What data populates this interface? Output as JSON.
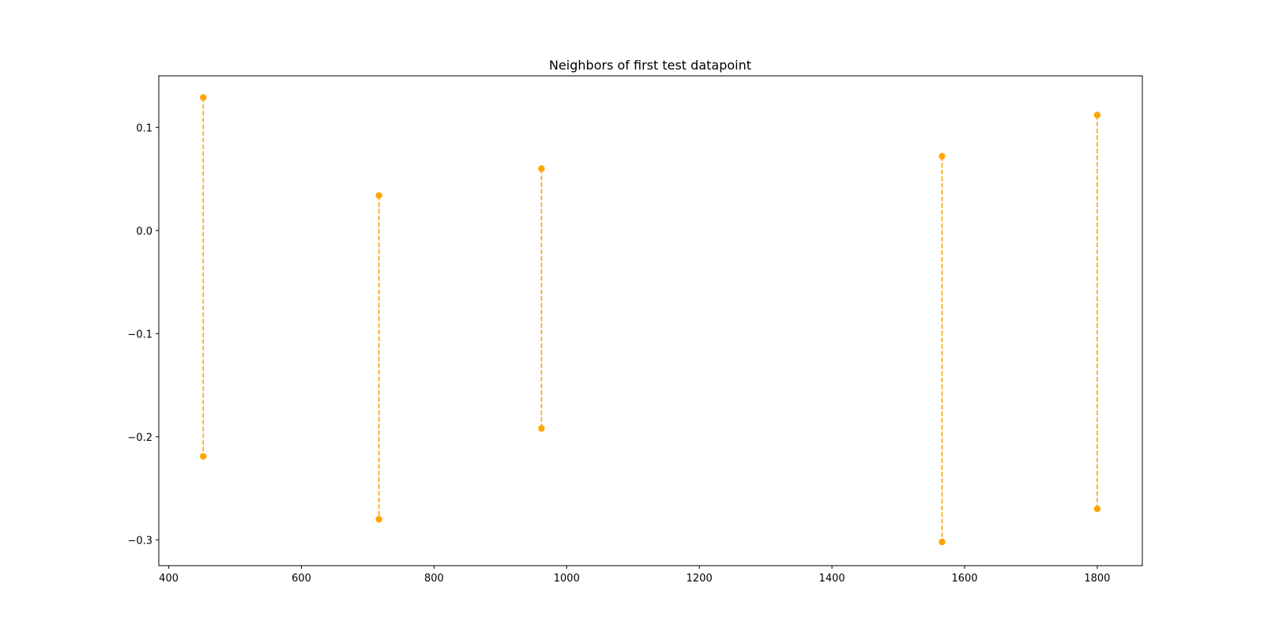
{
  "chart_data": {
    "type": "line",
    "title": "Neighbors of first test datapoint",
    "xlabel": "",
    "ylabel": "",
    "xlim": [
      385,
      1868
    ],
    "ylim": [
      -0.325,
      0.15
    ],
    "x_ticks": [
      400,
      600,
      800,
      1000,
      1200,
      1400,
      1600,
      1800
    ],
    "y_ticks": [
      0.1,
      0.0,
      -0.1,
      -0.2,
      -0.3
    ],
    "y_tick_labels": [
      "0.1",
      "0.0",
      "−0.1",
      "−0.2",
      "−0.3"
    ],
    "grid": false,
    "legend": "none",
    "line_style": "dashed",
    "marker": "circle",
    "color": "#ffa500",
    "segments": [
      {
        "x": [
          452,
          452
        ],
        "y": [
          0.129,
          -0.219
        ]
      },
      {
        "x": [
          717,
          717
        ],
        "y": [
          0.034,
          -0.28
        ]
      },
      {
        "x": [
          962,
          962
        ],
        "y": [
          0.06,
          -0.192
        ]
      },
      {
        "x": [
          1566,
          1566
        ],
        "y": [
          0.072,
          -0.302
        ]
      },
      {
        "x": [
          1800,
          1800
        ],
        "y": [
          0.112,
          -0.27
        ]
      }
    ]
  }
}
